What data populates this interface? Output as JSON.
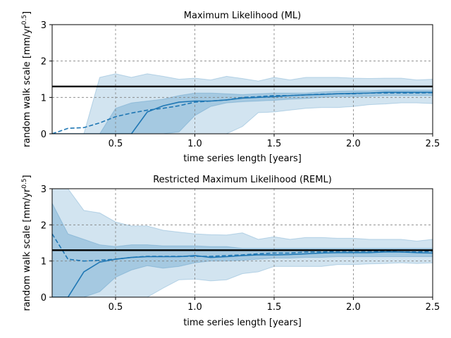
{
  "colors": {
    "series": "#1f77b4",
    "band_outer": "#1f77b4",
    "band_inner": "#1f77b4",
    "reference": "#000000",
    "grid": "#808080"
  },
  "chart_data": [
    {
      "type": "line",
      "title": "Maximum Likelihood (ML)",
      "xlabel": "time series length [years]",
      "ylabel": "random walk scale [mm/yr",
      "ylabel_sup": "0.5",
      "ylabel_close": "]",
      "xlim": [
        0.1,
        2.5
      ],
      "ylim": [
        0,
        3
      ],
      "xticks": [
        0.5,
        1.0,
        1.5,
        2.0,
        2.5
      ],
      "xtick_labels": [
        "0.5",
        "1.0",
        "1.5",
        "2.0",
        "2.5"
      ],
      "yticks": [
        0,
        1,
        2,
        3
      ],
      "ytick_labels": [
        "0",
        "1",
        "2",
        "3"
      ],
      "grid": true,
      "reference_line": 1.3,
      "x": [
        0.1,
        0.2,
        0.3,
        0.4,
        0.5,
        0.6,
        0.7,
        0.8,
        0.9,
        1.0,
        1.1,
        1.2,
        1.3,
        1.4,
        1.5,
        1.6,
        1.7,
        1.8,
        1.9,
        2.0,
        2.1,
        2.2,
        2.3,
        2.4,
        2.5
      ],
      "outer_band": {
        "upper": [
          0.0,
          0.0,
          0.0,
          1.55,
          1.65,
          1.55,
          1.65,
          1.58,
          1.5,
          1.53,
          1.48,
          1.58,
          1.52,
          1.45,
          1.55,
          1.48,
          1.55,
          1.55,
          1.55,
          1.53,
          1.52,
          1.53,
          1.53,
          1.48,
          1.5
        ],
        "lower": [
          0.0,
          0.0,
          0.0,
          0.0,
          0.0,
          0.0,
          0.0,
          0.0,
          0.0,
          0.0,
          0.0,
          0.0,
          0.2,
          0.58,
          0.6,
          0.65,
          0.7,
          0.72,
          0.72,
          0.75,
          0.8,
          0.82,
          0.85,
          0.85,
          0.83
        ]
      },
      "inner_band": {
        "upper": [
          0.0,
          0.0,
          0.0,
          0.0,
          0.7,
          0.85,
          0.9,
          0.95,
          1.05,
          1.12,
          1.12,
          1.1,
          1.08,
          1.1,
          1.12,
          1.12,
          1.12,
          1.15,
          1.17,
          1.18,
          1.18,
          1.2,
          1.2,
          1.2,
          1.2
        ],
        "lower": [
          0.0,
          0.0,
          0.0,
          0.0,
          0.0,
          0.0,
          0.0,
          0.0,
          0.05,
          0.5,
          0.75,
          0.85,
          0.88,
          0.9,
          0.92,
          0.95,
          0.97,
          1.0,
          1.02,
          1.02,
          1.03,
          1.05,
          1.05,
          1.05,
          1.05
        ]
      },
      "series": [
        {
          "style": "solid",
          "values": [
            0.0,
            0.0,
            0.0,
            0.0,
            0.0,
            0.0,
            0.6,
            0.77,
            0.87,
            0.9,
            0.9,
            0.93,
            0.98,
            1.0,
            1.02,
            1.05,
            1.07,
            1.08,
            1.1,
            1.11,
            1.12,
            1.14,
            1.14,
            1.14,
            1.14
          ]
        },
        {
          "style": "dashed",
          "values": [
            0.0,
            0.15,
            0.17,
            0.3,
            0.47,
            0.57,
            0.65,
            0.7,
            0.77,
            0.87,
            0.9,
            0.93,
            1.0,
            1.02,
            1.05,
            1.05,
            1.07,
            1.09,
            1.1,
            1.1,
            1.12,
            1.12,
            1.12,
            1.12,
            1.13
          ]
        }
      ]
    },
    {
      "type": "line",
      "title": "Restricted Maximum Likelihood (REML)",
      "xlabel": "time series length [years]",
      "ylabel": "random walk scale [mm/yr",
      "ylabel_sup": "0.5",
      "ylabel_close": "]",
      "xlim": [
        0.1,
        2.5
      ],
      "ylim": [
        0,
        3
      ],
      "xticks": [
        0.5,
        1.0,
        1.5,
        2.0,
        2.5
      ],
      "xtick_labels": [
        "0.5",
        "1.0",
        "1.5",
        "2.0",
        "2.5"
      ],
      "yticks": [
        0,
        1,
        2,
        3
      ],
      "ytick_labels": [
        "0",
        "1",
        "2",
        "3"
      ],
      "grid": true,
      "reference_line": 1.3,
      "x": [
        0.1,
        0.2,
        0.3,
        0.4,
        0.5,
        0.6,
        0.7,
        0.8,
        0.9,
        1.0,
        1.1,
        1.2,
        1.3,
        1.4,
        1.5,
        1.6,
        1.7,
        1.8,
        1.9,
        2.0,
        2.1,
        2.2,
        2.3,
        2.4,
        2.5
      ],
      "outer_band": {
        "upper": [
          3.0,
          3.0,
          2.4,
          2.33,
          2.08,
          1.97,
          1.97,
          1.85,
          1.8,
          1.75,
          1.73,
          1.72,
          1.78,
          1.6,
          1.67,
          1.6,
          1.65,
          1.65,
          1.63,
          1.63,
          1.6,
          1.6,
          1.6,
          1.55,
          1.6
        ],
        "lower": [
          0.0,
          0.0,
          0.0,
          0.0,
          0.0,
          0.0,
          0.0,
          0.25,
          0.48,
          0.5,
          0.45,
          0.48,
          0.65,
          0.7,
          0.85,
          0.85,
          0.85,
          0.85,
          0.9,
          0.9,
          0.92,
          0.93,
          0.95,
          0.93,
          0.95
        ]
      },
      "inner_band": {
        "upper": [
          2.6,
          1.75,
          1.6,
          1.45,
          1.4,
          1.45,
          1.45,
          1.42,
          1.42,
          1.42,
          1.4,
          1.4,
          1.35,
          1.35,
          1.35,
          1.35,
          1.35,
          1.35,
          1.35,
          1.35,
          1.35,
          1.35,
          1.35,
          1.35,
          1.35
        ],
        "lower": [
          0.0,
          0.0,
          0.0,
          0.15,
          0.55,
          0.75,
          0.87,
          0.8,
          0.85,
          0.95,
          1.0,
          1.0,
          1.02,
          1.05,
          1.08,
          1.08,
          1.1,
          1.1,
          1.12,
          1.12,
          1.12,
          1.12,
          1.12,
          1.12,
          1.12
        ]
      },
      "series": [
        {
          "style": "solid",
          "values": [
            0.0,
            0.0,
            0.7,
            0.97,
            1.05,
            1.1,
            1.12,
            1.12,
            1.12,
            1.15,
            1.1,
            1.12,
            1.15,
            1.17,
            1.17,
            1.18,
            1.2,
            1.22,
            1.23,
            1.23,
            1.23,
            1.25,
            1.25,
            1.23,
            1.22
          ]
        },
        {
          "style": "dashed",
          "values": [
            1.75,
            1.05,
            1.0,
            1.02,
            1.05,
            1.1,
            1.13,
            1.13,
            1.13,
            1.13,
            1.13,
            1.15,
            1.17,
            1.2,
            1.22,
            1.22,
            1.25,
            1.25,
            1.27,
            1.27,
            1.27,
            1.27,
            1.25,
            1.25,
            1.27
          ]
        }
      ]
    }
  ]
}
